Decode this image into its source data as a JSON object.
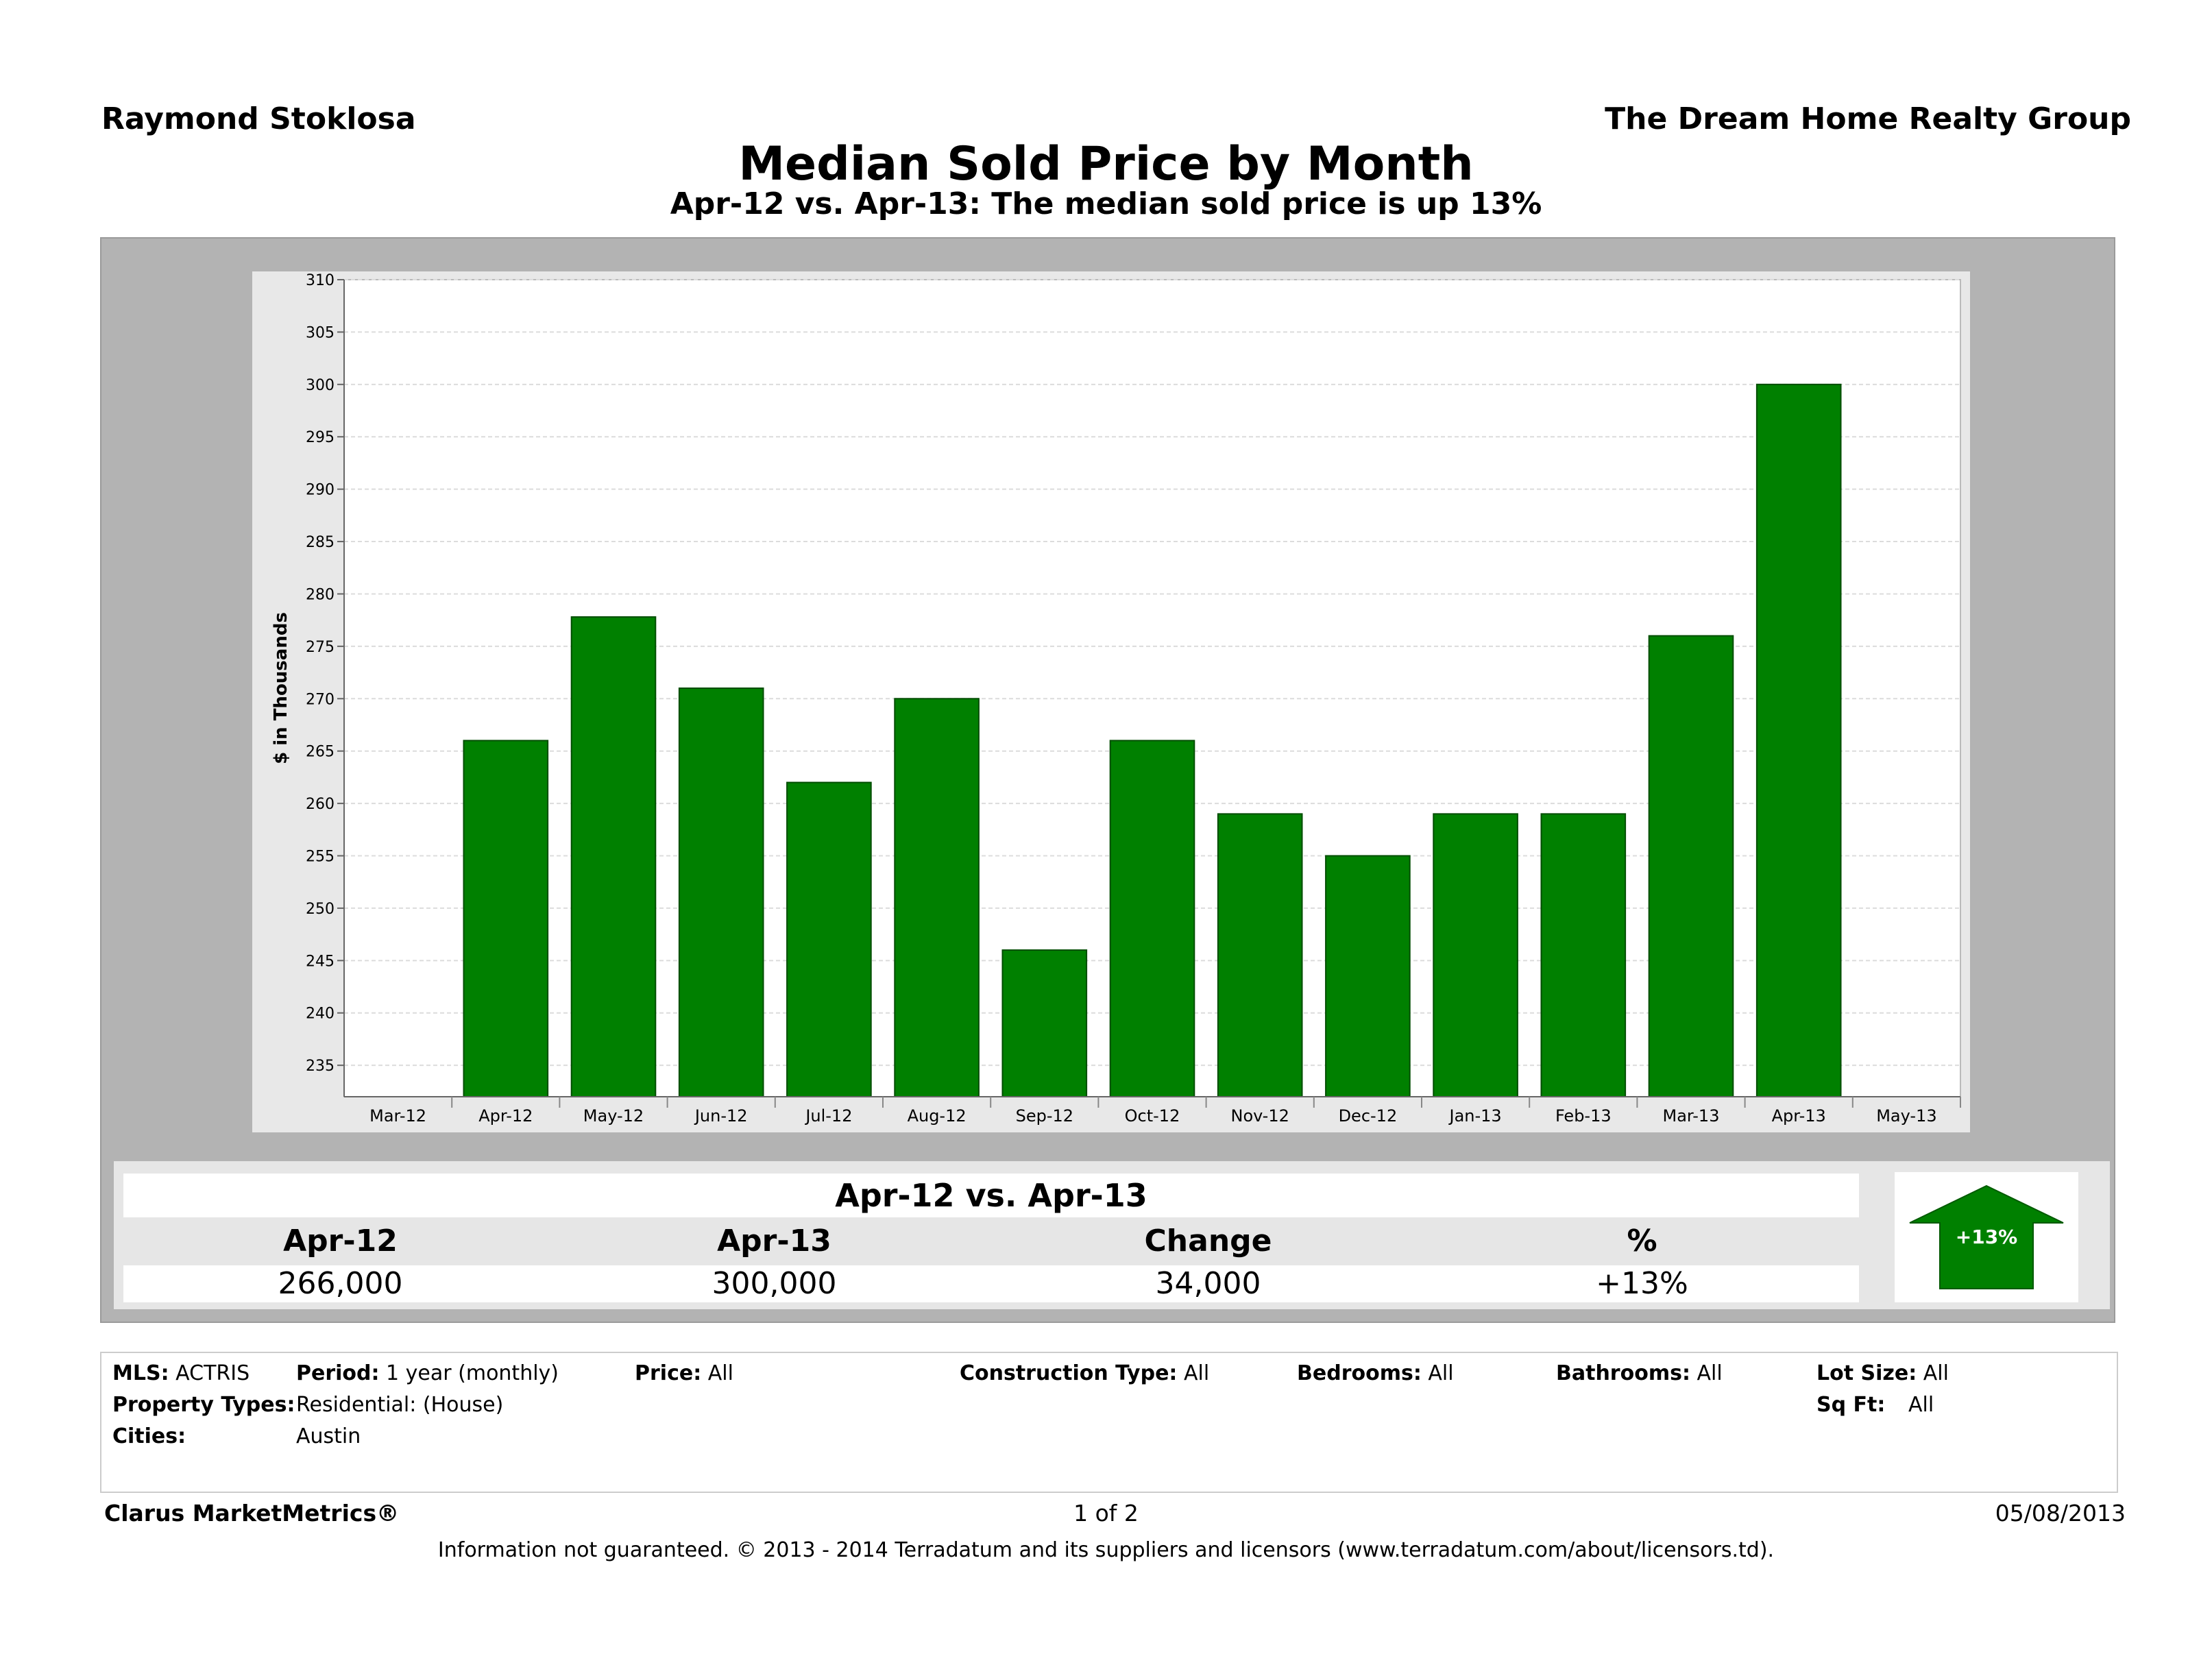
{
  "header": {
    "agent_name": "Raymond Stoklosa",
    "company": "The Dream Home Realty Group",
    "title": "Median Sold Price by Month",
    "subtitle": "Apr-12 vs. Apr-13:  The median sold price is up 13%"
  },
  "chart_data": {
    "type": "bar",
    "title": "Median Sold Price by Month",
    "ylabel": "$ in Thousands",
    "xlabel": "",
    "ylim": [
      232,
      310
    ],
    "yticks": [
      235,
      240,
      245,
      250,
      255,
      260,
      265,
      270,
      275,
      280,
      285,
      290,
      295,
      300,
      305,
      310
    ],
    "x_tick_labels": [
      "Mar-12",
      "Apr-12",
      "May-12",
      "Jun-12",
      "Jul-12",
      "Aug-12",
      "Sep-12",
      "Oct-12",
      "Nov-12",
      "Dec-12",
      "Jan-13",
      "Feb-13",
      "Mar-13",
      "Apr-13",
      "May-13"
    ],
    "categories": [
      "Apr-12",
      "May-12",
      "Jun-12",
      "Jul-12",
      "Aug-12",
      "Sep-12",
      "Oct-12",
      "Nov-12",
      "Dec-12",
      "Jan-13",
      "Feb-13",
      "Mar-13",
      "Apr-13"
    ],
    "values": [
      266,
      277.8,
      271,
      262,
      270,
      246,
      266,
      259,
      255,
      259,
      259,
      276,
      300
    ],
    "bar_color": "#008000",
    "grid": true
  },
  "summary": {
    "heading": "Apr-12 vs. Apr-13",
    "columns": [
      "Apr-12",
      "Apr-13",
      "Change",
      "%"
    ],
    "values": [
      "266,000",
      "300,000",
      "34,000",
      "+13%"
    ],
    "badge": "+13%",
    "badge_color": "#008000"
  },
  "filters": {
    "mls_label": "MLS:",
    "mls_value": "ACTRIS",
    "period_label": "Period:",
    "period_value": "1 year (monthly)",
    "price_label": "Price:",
    "price_value": "All",
    "construction_label": "Construction Type:",
    "construction_value": "All",
    "bedrooms_label": "Bedrooms:",
    "bedrooms_value": "All",
    "bathrooms_label": "Bathrooms:",
    "bathrooms_value": "All",
    "lot_label": "Lot Size:",
    "lot_value": "All",
    "property_label": "Property Types:",
    "property_value": "Residential: (House)",
    "sqft_label": "Sq Ft:",
    "sqft_value": "All",
    "cities_label": "Cities:",
    "cities_value": "Austin"
  },
  "footer": {
    "brand": "Clarus MarketMetrics®",
    "page": "1 of 2",
    "date": "05/08/2013",
    "disclaimer": "Information not guaranteed.  © 2013 - 2014 Terradatum and its suppliers and licensors (www.terradatum.com/about/licensors.td)."
  }
}
